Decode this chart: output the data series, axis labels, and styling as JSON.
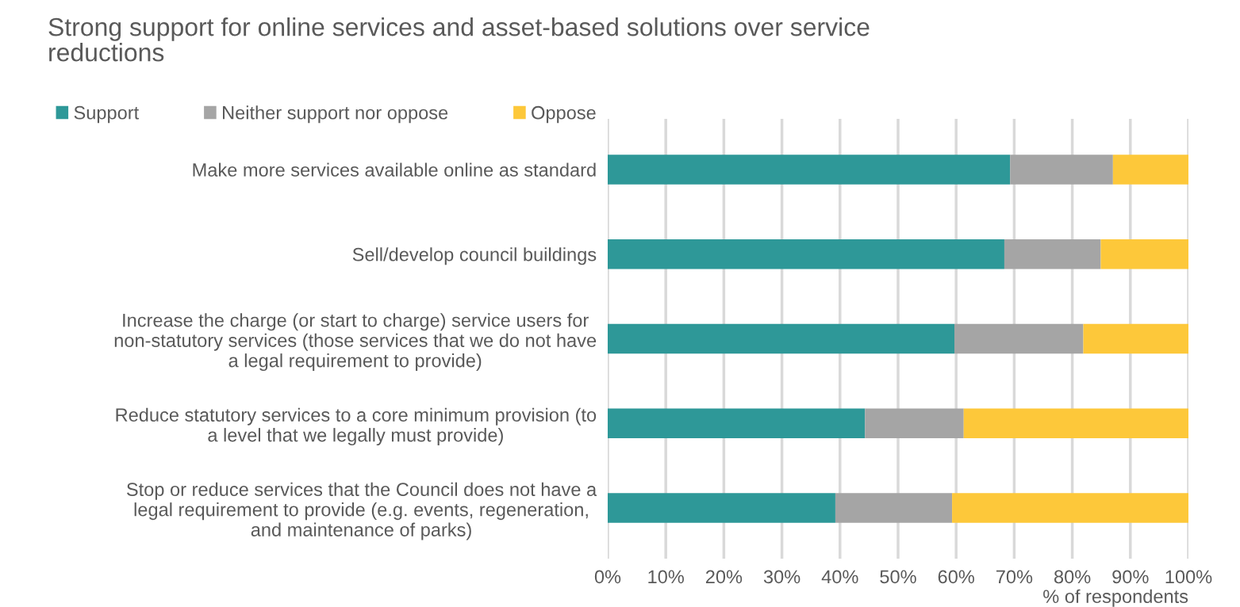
{
  "chart_data": {
    "type": "bar",
    "orientation": "horizontal",
    "stacked": true,
    "title": "Strong support for online services and asset-based solutions over service\nreductions",
    "xlabel": "% of respondents",
    "categories": [
      "Make more services available online as standard",
      "Sell/develop council buildings",
      "Increase the charge (or start to charge) service users for\nnon-statutory services (those services that we do not have\na legal requirement to provide)",
      "Reduce statutory services to a core minimum provision (to\na level that we legally must provide)",
      "Stop or reduce services that the Council does not have a\nlegal requirement to provide (e.g. events, regeneration,\nand maintenance of parks)"
    ],
    "series": [
      {
        "name": "Support",
        "color": "#2e9898",
        "values": [
          69.3,
          68.3,
          59.7,
          44.3,
          39.2
        ]
      },
      {
        "name": "Neither support nor oppose",
        "color": "#a5a5a5",
        "values": [
          17.7,
          16.6,
          22.2,
          17.0,
          20.1
        ]
      },
      {
        "name": "Oppose",
        "color": "#fdc83a",
        "values": [
          13.0,
          15.1,
          18.1,
          38.7,
          40.7
        ]
      }
    ],
    "xlim": [
      0,
      100
    ],
    "xticks": [
      {
        "value": 0,
        "label": "0%"
      },
      {
        "value": 10,
        "label": "10%"
      },
      {
        "value": 20,
        "label": "20%"
      },
      {
        "value": 30,
        "label": "30%"
      },
      {
        "value": 40,
        "label": "40%"
      },
      {
        "value": 50,
        "label": "50%"
      },
      {
        "value": 60,
        "label": "60%"
      },
      {
        "value": 70,
        "label": "70%"
      },
      {
        "value": 80,
        "label": "80%"
      },
      {
        "value": 90,
        "label": "90%"
      },
      {
        "value": 100,
        "label": "100%"
      }
    ],
    "grid": "x",
    "legend": "top left"
  }
}
